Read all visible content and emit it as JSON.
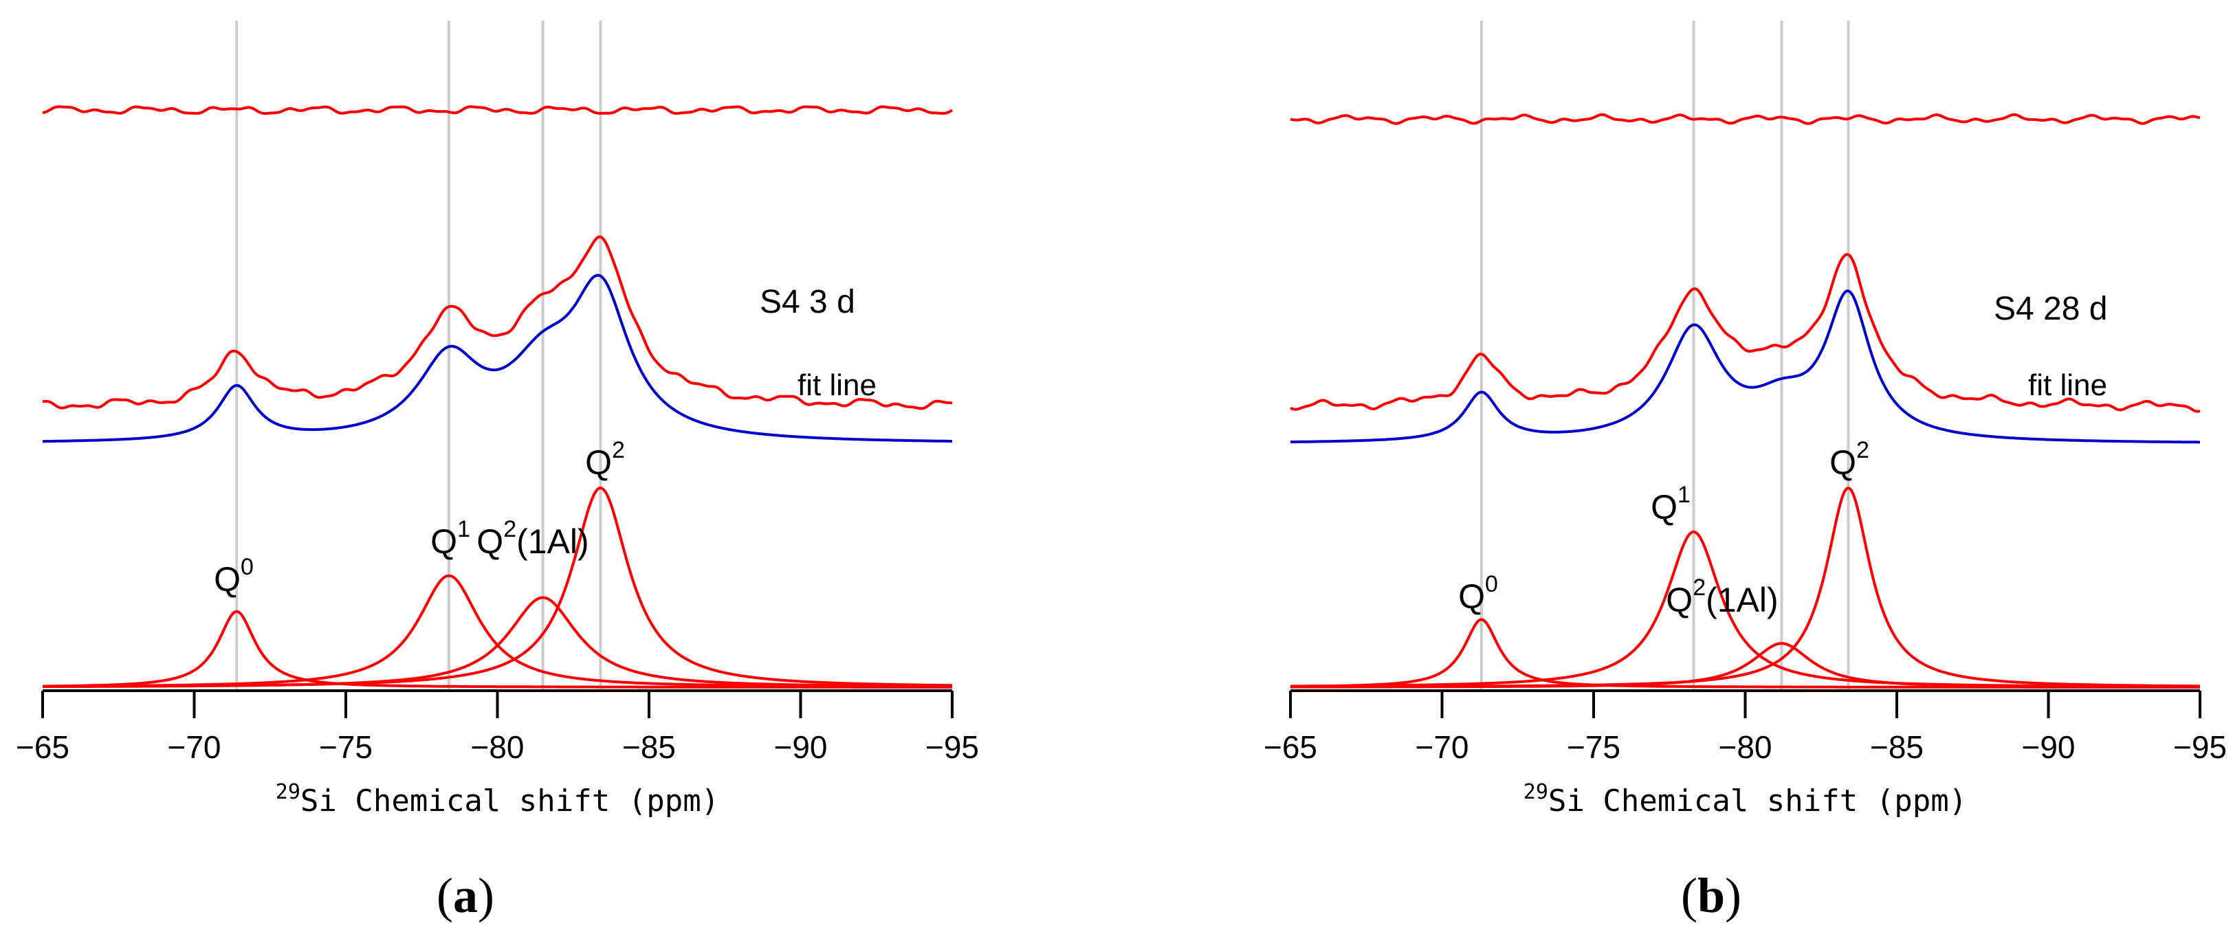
{
  "figure": {
    "panels": [
      {
        "label_open": "(",
        "letter": "a",
        "label_close": ")"
      },
      {
        "label_open": "(",
        "letter": "b",
        "label_close": ")"
      }
    ]
  },
  "colors": {
    "spectrum": "#ff0000",
    "fit": "#0000cc",
    "gridline": "#cccccc",
    "axis": "#000000"
  },
  "chart_data": [
    {
      "type": "line",
      "panel": "a",
      "xlabel_sup": "29",
      "xlabel": "Si Chemical shift (ppm)",
      "xlim": [
        -65,
        -95
      ],
      "xticks": [
        -65,
        -70,
        -75,
        -80,
        -85,
        -90,
        -95
      ],
      "tick_labels": [
        "−65",
        "−70",
        "−75",
        "−80",
        "−85",
        "−90",
        "−95"
      ],
      "reference_lines_ppm": [
        -71.4,
        -78.4,
        -81.5,
        -83.4
      ],
      "sample_label": "S4 3 d",
      "fit_label": "fit line",
      "peaks": [
        {
          "name": "Q0",
          "base": "Q",
          "sup": "0",
          "suffix": "",
          "center": -71.4,
          "width": 0.75,
          "height": 0.38
        },
        {
          "name": "Q1",
          "base": "Q",
          "sup": "1",
          "suffix": "",
          "center": -78.4,
          "width": 1.25,
          "height": 0.56
        },
        {
          "name": "Q2(1Al)",
          "base": "Q",
          "sup": "2",
          "suffix": "(1Al)",
          "center": -81.5,
          "width": 1.4,
          "height": 0.45
        },
        {
          "name": "Q2",
          "base": "Q",
          "sup": "2",
          "suffix": "",
          "center": -83.4,
          "width": 1.15,
          "height": 1.0
        }
      ],
      "series": [
        {
          "name": "experimental spectrum (S4 3 d)",
          "offset": 1.55,
          "scale": 0.78,
          "noise": 0.03
        },
        {
          "name": "fit line",
          "offset": 1.35,
          "scale": 0.78,
          "noise": 0
        },
        {
          "name": "residual",
          "offset": 3.2,
          "scale": 0.0,
          "noise": 0.025
        }
      ]
    },
    {
      "type": "line",
      "panel": "b",
      "xlabel_sup": "29",
      "xlabel": "Si Chemical shift (ppm)",
      "xlim": [
        -65,
        -95
      ],
      "xticks": [
        -65,
        -70,
        -75,
        -80,
        -85,
        -90,
        -95
      ],
      "tick_labels": [
        "−65",
        "−70",
        "−75",
        "−80",
        "−85",
        "−90",
        "−95"
      ],
      "reference_lines_ppm": [
        -71.3,
        -78.3,
        -81.2,
        -83.4
      ],
      "sample_label": "S4 28 d",
      "fit_label": "fit line",
      "peaks": [
        {
          "name": "Q0",
          "base": "Q",
          "sup": "0",
          "suffix": "",
          "center": -71.3,
          "width": 0.7,
          "height": 0.34
        },
        {
          "name": "Q1",
          "base": "Q",
          "sup": "1",
          "suffix": "",
          "center": -78.3,
          "width": 1.1,
          "height": 0.78
        },
        {
          "name": "Q2(1Al)",
          "base": "Q",
          "sup": "2",
          "suffix": "(1Al)",
          "center": -81.2,
          "width": 1.2,
          "height": 0.22
        },
        {
          "name": "Q2",
          "base": "Q",
          "sup": "2",
          "suffix": "",
          "center": -83.4,
          "width": 0.9,
          "height": 1.0
        }
      ],
      "series": [
        {
          "name": "experimental spectrum (S4 28 d)",
          "offset": 1.55,
          "scale": 0.78,
          "noise": 0.03
        },
        {
          "name": "fit line",
          "offset": 1.35,
          "scale": 0.78,
          "noise": 0
        },
        {
          "name": "residual",
          "offset": 3.15,
          "scale": 0.0,
          "noise": 0.025
        }
      ]
    }
  ]
}
